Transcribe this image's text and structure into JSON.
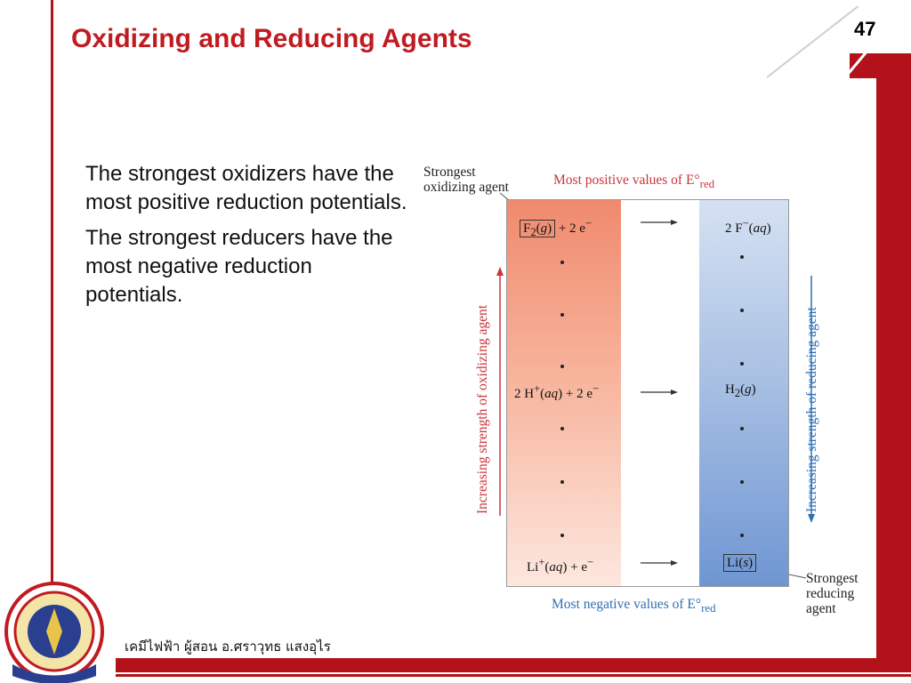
{
  "header": {
    "title": "Oxidizing and Reducing Agents",
    "page_number": "47"
  },
  "body": {
    "paragraphs": [
      "The strongest oxidizers have the most positive reduction potentials.",
      "The strongest reducers have the most negative reduction potentials."
    ]
  },
  "figure": {
    "strongest_oxidizing_line1": "Strongest",
    "strongest_oxidizing_line2": "oxidizing agent",
    "top_caption": "Most positive values of E°",
    "top_caption_sub": "red",
    "bottom_caption": "Most negative values of E°",
    "bottom_caption_sub": "red",
    "left_axis": "Increasing strength of oxidizing agent",
    "right_axis": "Increasing strength of reducing agent",
    "strongest_reducing_line1": "Strongest",
    "strongest_reducing_line2": "reducing",
    "strongest_reducing_line3": "agent",
    "reactions": [
      {
        "left": "F2(g) + 2 e−",
        "right": "2 F−(aq)"
      },
      {
        "left": "2 H+(aq) + 2 e−",
        "right": "H2(g)"
      },
      {
        "left": "Li+(aq) + e−",
        "right": "Li(s)"
      }
    ]
  },
  "footer": {
    "text": "เคมีไฟฟ้า ผู้สอน อ.ศราวุทธ แสงอุไร"
  },
  "colors": {
    "accent": "#c01b21",
    "oxidizer_gradient": "#f08a6e",
    "reducer_gradient": "#6f96d2",
    "blue_label": "#2f6fb3"
  }
}
